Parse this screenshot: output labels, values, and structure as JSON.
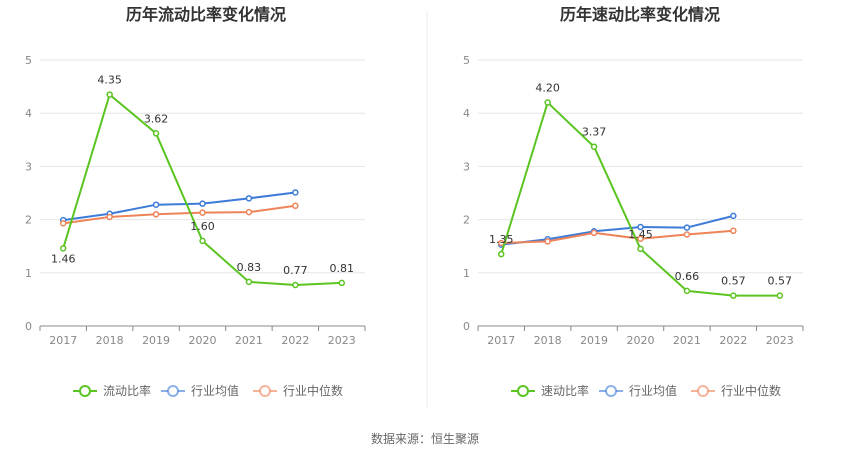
{
  "chart_data": [
    {
      "type": "line",
      "title": "历年流动比率变化情况",
      "categories": [
        "2017",
        "2018",
        "2019",
        "2020",
        "2021",
        "2022",
        "2023"
      ],
      "ylim": [
        0,
        5
      ],
      "yticks": [
        "0",
        "1",
        "2",
        "3",
        "4",
        "5"
      ],
      "grid": true,
      "legend_position": "bottom",
      "series": [
        {
          "name": "流动比率",
          "color": "#5ac421",
          "values": [
            1.46,
            4.35,
            3.62,
            1.6,
            0.83,
            0.77,
            0.81
          ],
          "labels": [
            "1.46",
            "4.35",
            "3.62",
            "1.60",
            "0.83",
            "0.77",
            "0.81"
          ]
        },
        {
          "name": "行业均值",
          "color": "#3d7bd8",
          "values": [
            1.99,
            2.11,
            2.28,
            2.3,
            2.4,
            2.51,
            null
          ]
        },
        {
          "name": "行业中位数",
          "color": "#ee8358",
          "values": [
            1.93,
            2.05,
            2.1,
            2.13,
            2.14,
            2.26,
            null
          ]
        }
      ]
    },
    {
      "type": "line",
      "title": "历年速动比率变化情况",
      "categories": [
        "2017",
        "2018",
        "2019",
        "2020",
        "2021",
        "2022",
        "2023"
      ],
      "ylim": [
        0,
        5
      ],
      "yticks": [
        "0",
        "1",
        "2",
        "3",
        "4",
        "5"
      ],
      "grid": true,
      "legend_position": "bottom",
      "series": [
        {
          "name": "速动比率",
          "color": "#5ac421",
          "values": [
            1.35,
            4.2,
            3.37,
            1.45,
            0.66,
            0.57,
            0.57
          ],
          "labels": [
            "1.35",
            "4.20",
            "3.37",
            "1.45",
            "0.66",
            "0.57",
            "0.57"
          ]
        },
        {
          "name": "行业均值",
          "color": "#3d7bd8",
          "values": [
            1.53,
            1.63,
            1.78,
            1.86,
            1.85,
            2.07,
            null
          ]
        },
        {
          "name": "行业中位数",
          "color": "#ee8358",
          "values": [
            1.56,
            1.59,
            1.75,
            1.64,
            1.72,
            1.79,
            null
          ]
        }
      ]
    }
  ],
  "footer": {
    "source": "数据来源：恒生聚源"
  }
}
